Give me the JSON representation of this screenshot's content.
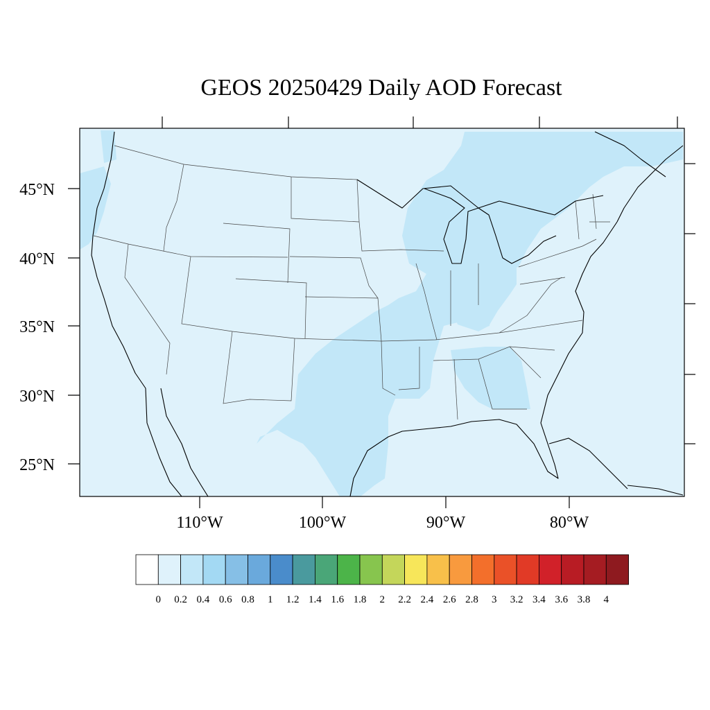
{
  "title": "GEOS 20250429 Daily AOD Forecast",
  "map": {
    "projection": "cylindrical equidistant",
    "lon_range": [
      -125,
      -76
    ],
    "lat_range": [
      22.7,
      49.4
    ],
    "lat_labels": [
      "45°N",
      "40°N",
      "35°N",
      "30°N",
      "25°N"
    ],
    "lon_labels": [
      "110°W",
      "100°W",
      "90°W",
      "80°W"
    ],
    "background_color": "#dff2fb",
    "plume_color": "#c2e7f8",
    "coastline_color": "#000000",
    "state_border_color": "#444444"
  },
  "colorbar": {
    "labels": [
      "0",
      "0.2",
      "0.4",
      "0.6",
      "0.8",
      "1",
      "1.2",
      "1.4",
      "1.6",
      "1.8",
      "2",
      "2.2",
      "2.4",
      "2.6",
      "2.8",
      "3",
      "3.2",
      "3.4",
      "3.6",
      "3.8",
      "4"
    ],
    "colors": [
      "#ffffff",
      "#dff2fb",
      "#c2e7f8",
      "#a3d9f3",
      "#86bfe6",
      "#6aa9dc",
      "#4a8ccb",
      "#4a9a9e",
      "#4aa678",
      "#4cb449",
      "#87c54e",
      "#c4d65a",
      "#f7e65a",
      "#f8c04a",
      "#f89a3e",
      "#f36f2b",
      "#ea5128",
      "#e13a26",
      "#d12129",
      "#b81c24",
      "#a51c22",
      "#8e1a1f"
    ]
  }
}
